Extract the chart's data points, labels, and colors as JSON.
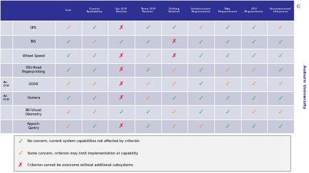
{
  "col_headers": [
    "Cost",
    "Current\nAvailability",
    "Six DOF\nPosition",
    "Three DOF\nPosition",
    "Drifting\nSolution",
    "Infrastructure\nRequirement",
    "Map\nRequirement",
    "CPU\nRequirement",
    "Environmental\nInfluences"
  ],
  "row_headers": [
    "GPS",
    "INS",
    "Wheel Speed",
    "PSU-Road\nFingerprinting",
    "LIDAR",
    "Camera",
    "SRI-Visual\nOdometry",
    "Kapsch-\nGantry"
  ],
  "row_group_labels": [
    null,
    null,
    null,
    null,
    "AU-\nLDW",
    "AU-\nLDW",
    null,
    null
  ],
  "table_data": [
    [
      "Y",
      "G",
      "R",
      "G",
      "G",
      "Y",
      "G",
      "G",
      "Y"
    ],
    [
      "G",
      "Y",
      "G",
      "G",
      "R",
      "G",
      "G",
      "G",
      "G"
    ],
    [
      "G",
      "G",
      "R",
      "Y",
      "R",
      "G",
      "G",
      "G",
      "G"
    ],
    [
      "G",
      "G",
      "R",
      "G",
      "Y",
      "G",
      "Y",
      "Y",
      "G"
    ],
    [
      "Y",
      "Y",
      "R",
      "Y",
      "Y",
      "G",
      "Y",
      "Y",
      "Y"
    ],
    [
      "G",
      "G",
      "R",
      "Y",
      "G",
      "G",
      "G",
      "G",
      "G"
    ],
    [
      "Y",
      "Y",
      "G",
      "G",
      "Y",
      "G",
      "G",
      "Y",
      "Y"
    ],
    [
      "Y",
      "G",
      "R",
      "G",
      "Y",
      "Y",
      "G",
      "G",
      "G"
    ]
  ],
  "header_bg": "#2e3192",
  "header_fg": "#ffffff",
  "row_bg_odd": "#d9dae8",
  "row_bg_even": "#c8cadc",
  "green": "#3ab54a",
  "yellow": "#f7941d",
  "red": "#ed1c24",
  "legend_bg": "#f2f2f2",
  "legend_border": "#aaaaaa",
  "legend_items": [
    {
      "symbol": "G",
      "text": "No concern, current system capabilities not affected by criterion"
    },
    {
      "symbol": "Y",
      "text": "Some concern, criterion may limit implementation or capability"
    },
    {
      "symbol": "R",
      "text": "Criterion cannot be overcome without additional subsystems"
    }
  ],
  "watermark": "Auburn University",
  "watermark_color": "#2e3192"
}
